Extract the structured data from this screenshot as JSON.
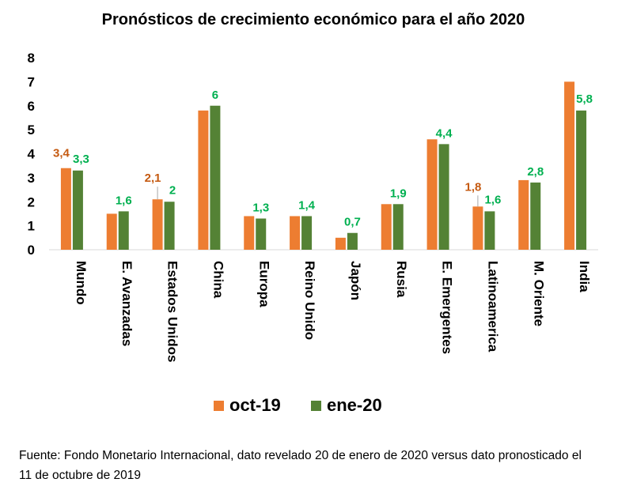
{
  "chart_data": {
    "type": "bar",
    "title": "Pronósticos de crecimiento económico para el año 2020",
    "categories": [
      "Mundo",
      "E. Avanzadas",
      "Estados Unidos",
      "China",
      "Europa",
      "Reino Unido",
      "Japón",
      "Rusia",
      "E. Emergentes",
      "Latinoamerica",
      "M. Oriente",
      "India"
    ],
    "series": [
      {
        "name": "oct-19",
        "color": "#ED7D31",
        "label_color": "#C55A11",
        "values": [
          3.4,
          1.5,
          2.1,
          5.8,
          1.4,
          1.4,
          0.5,
          1.9,
          4.6,
          1.8,
          2.9,
          7.0
        ],
        "data_labels": [
          "3,4",
          null,
          "2,1",
          null,
          null,
          null,
          null,
          null,
          null,
          "1,8",
          null,
          null
        ]
      },
      {
        "name": "ene-20",
        "color": "#548235",
        "label_color": "#00B050",
        "values": [
          3.3,
          1.6,
          2.0,
          6.0,
          1.3,
          1.4,
          0.7,
          1.9,
          4.4,
          1.6,
          2.8,
          5.8
        ],
        "data_labels": [
          "3,3",
          "1,6",
          "2",
          "6",
          "1,3",
          "1,4",
          "0,7",
          "1,9",
          "4,4",
          "1,6",
          "2,8",
          "5,8"
        ]
      }
    ],
    "yticks": [
      "0",
      "1",
      "2",
      "3",
      "4",
      "5",
      "6",
      "7",
      "8"
    ],
    "ylim": [
      0,
      8
    ],
    "grid": false,
    "legend_position": "bottom"
  },
  "source_note": "Fuente: Fondo Monetario Internacional, dato revelado 20 de enero de 2020 versus dato pronosticado el 11 de octubre de 2019"
}
